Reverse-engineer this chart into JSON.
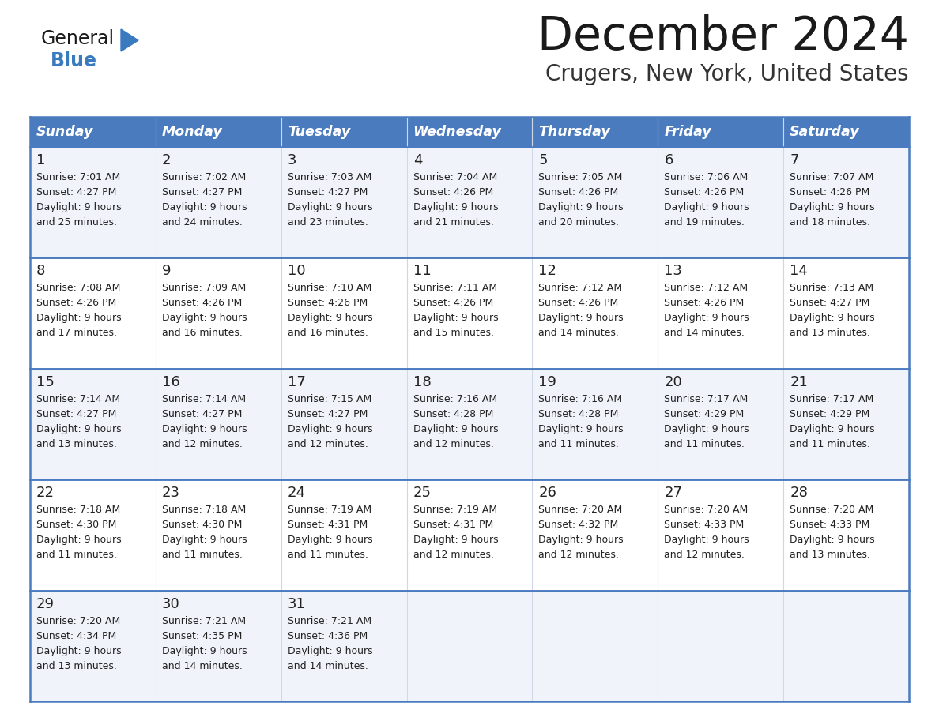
{
  "title": "December 2024",
  "subtitle": "Crugers, New York, United States",
  "days_of_week": [
    "Sunday",
    "Monday",
    "Tuesday",
    "Wednesday",
    "Thursday",
    "Friday",
    "Saturday"
  ],
  "header_bg": "#4b7bbf",
  "header_text": "#FFFFFF",
  "row_bg_light": "#f0f4fa",
  "row_bg_white": "#FFFFFF",
  "border_color": "#4b7bbf",
  "text_color": "#222222",
  "title_color": "#1a1a1a",
  "subtitle_color": "#333333",
  "logo_general_color": "#1a1a1a",
  "logo_blue_color": "#3a7abf",
  "calendar_data": [
    [
      {
        "day": 1,
        "sunrise": "7:01 AM",
        "sunset": "4:27 PM",
        "daylight_hours": 9,
        "daylight_minutes": 25
      },
      {
        "day": 2,
        "sunrise": "7:02 AM",
        "sunset": "4:27 PM",
        "daylight_hours": 9,
        "daylight_minutes": 24
      },
      {
        "day": 3,
        "sunrise": "7:03 AM",
        "sunset": "4:27 PM",
        "daylight_hours": 9,
        "daylight_minutes": 23
      },
      {
        "day": 4,
        "sunrise": "7:04 AM",
        "sunset": "4:26 PM",
        "daylight_hours": 9,
        "daylight_minutes": 21
      },
      {
        "day": 5,
        "sunrise": "7:05 AM",
        "sunset": "4:26 PM",
        "daylight_hours": 9,
        "daylight_minutes": 20
      },
      {
        "day": 6,
        "sunrise": "7:06 AM",
        "sunset": "4:26 PM",
        "daylight_hours": 9,
        "daylight_minutes": 19
      },
      {
        "day": 7,
        "sunrise": "7:07 AM",
        "sunset": "4:26 PM",
        "daylight_hours": 9,
        "daylight_minutes": 18
      }
    ],
    [
      {
        "day": 8,
        "sunrise": "7:08 AM",
        "sunset": "4:26 PM",
        "daylight_hours": 9,
        "daylight_minutes": 17
      },
      {
        "day": 9,
        "sunrise": "7:09 AM",
        "sunset": "4:26 PM",
        "daylight_hours": 9,
        "daylight_minutes": 16
      },
      {
        "day": 10,
        "sunrise": "7:10 AM",
        "sunset": "4:26 PM",
        "daylight_hours": 9,
        "daylight_minutes": 16
      },
      {
        "day": 11,
        "sunrise": "7:11 AM",
        "sunset": "4:26 PM",
        "daylight_hours": 9,
        "daylight_minutes": 15
      },
      {
        "day": 12,
        "sunrise": "7:12 AM",
        "sunset": "4:26 PM",
        "daylight_hours": 9,
        "daylight_minutes": 14
      },
      {
        "day": 13,
        "sunrise": "7:12 AM",
        "sunset": "4:26 PM",
        "daylight_hours": 9,
        "daylight_minutes": 14
      },
      {
        "day": 14,
        "sunrise": "7:13 AM",
        "sunset": "4:27 PM",
        "daylight_hours": 9,
        "daylight_minutes": 13
      }
    ],
    [
      {
        "day": 15,
        "sunrise": "7:14 AM",
        "sunset": "4:27 PM",
        "daylight_hours": 9,
        "daylight_minutes": 13
      },
      {
        "day": 16,
        "sunrise": "7:14 AM",
        "sunset": "4:27 PM",
        "daylight_hours": 9,
        "daylight_minutes": 12
      },
      {
        "day": 17,
        "sunrise": "7:15 AM",
        "sunset": "4:27 PM",
        "daylight_hours": 9,
        "daylight_minutes": 12
      },
      {
        "day": 18,
        "sunrise": "7:16 AM",
        "sunset": "4:28 PM",
        "daylight_hours": 9,
        "daylight_minutes": 12
      },
      {
        "day": 19,
        "sunrise": "7:16 AM",
        "sunset": "4:28 PM",
        "daylight_hours": 9,
        "daylight_minutes": 11
      },
      {
        "day": 20,
        "sunrise": "7:17 AM",
        "sunset": "4:29 PM",
        "daylight_hours": 9,
        "daylight_minutes": 11
      },
      {
        "day": 21,
        "sunrise": "7:17 AM",
        "sunset": "4:29 PM",
        "daylight_hours": 9,
        "daylight_minutes": 11
      }
    ],
    [
      {
        "day": 22,
        "sunrise": "7:18 AM",
        "sunset": "4:30 PM",
        "daylight_hours": 9,
        "daylight_minutes": 11
      },
      {
        "day": 23,
        "sunrise": "7:18 AM",
        "sunset": "4:30 PM",
        "daylight_hours": 9,
        "daylight_minutes": 11
      },
      {
        "day": 24,
        "sunrise": "7:19 AM",
        "sunset": "4:31 PM",
        "daylight_hours": 9,
        "daylight_minutes": 11
      },
      {
        "day": 25,
        "sunrise": "7:19 AM",
        "sunset": "4:31 PM",
        "daylight_hours": 9,
        "daylight_minutes": 12
      },
      {
        "day": 26,
        "sunrise": "7:20 AM",
        "sunset": "4:32 PM",
        "daylight_hours": 9,
        "daylight_minutes": 12
      },
      {
        "day": 27,
        "sunrise": "7:20 AM",
        "sunset": "4:33 PM",
        "daylight_hours": 9,
        "daylight_minutes": 12
      },
      {
        "day": 28,
        "sunrise": "7:20 AM",
        "sunset": "4:33 PM",
        "daylight_hours": 9,
        "daylight_minutes": 13
      }
    ],
    [
      {
        "day": 29,
        "sunrise": "7:20 AM",
        "sunset": "4:34 PM",
        "daylight_hours": 9,
        "daylight_minutes": 13
      },
      {
        "day": 30,
        "sunrise": "7:21 AM",
        "sunset": "4:35 PM",
        "daylight_hours": 9,
        "daylight_minutes": 14
      },
      {
        "day": 31,
        "sunrise": "7:21 AM",
        "sunset": "4:36 PM",
        "daylight_hours": 9,
        "daylight_minutes": 14
      },
      null,
      null,
      null,
      null
    ]
  ]
}
